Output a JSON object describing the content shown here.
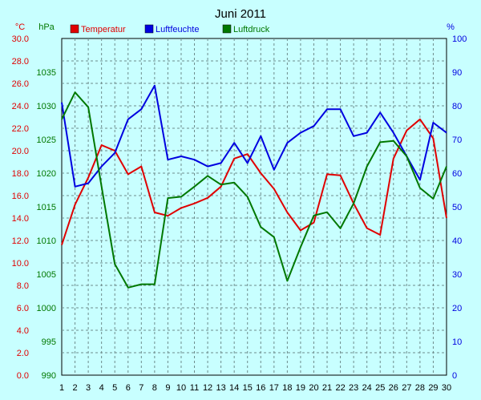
{
  "chart_data": {
    "type": "line",
    "title": "Juni 2011",
    "colors": {
      "background": "#c8ffff",
      "grid": "#6e8c8c",
      "temperature": "#e00000",
      "humidity": "#0000e0",
      "pressure": "#007800"
    },
    "axes": {
      "temperature": {
        "unit": "°C",
        "min": 0,
        "max": 30,
        "step": 2,
        "tick_labels": [
          "0.0",
          "2.0",
          "4.0",
          "6.0",
          "8.0",
          "10.0",
          "12.0",
          "14.0",
          "16.0",
          "18.0",
          "20.0",
          "22.0",
          "24.0",
          "26.0",
          "28.0",
          "30.0"
        ]
      },
      "pressure": {
        "unit": "hPa",
        "min": 990,
        "max": 1040,
        "step": 5,
        "tick_labels": [
          "990",
          "995",
          "1000",
          "1005",
          "1010",
          "1015",
          "1020",
          "1025",
          "1030",
          "1035"
        ]
      },
      "humidity": {
        "unit": "%",
        "min": 0,
        "max": 100,
        "step": 10,
        "tick_labels": [
          "0",
          "10",
          "20",
          "30",
          "40",
          "50",
          "60",
          "70",
          "80",
          "90",
          "100"
        ]
      }
    },
    "x": [
      1,
      2,
      3,
      4,
      5,
      6,
      7,
      8,
      9,
      10,
      11,
      12,
      13,
      14,
      15,
      16,
      17,
      18,
      19,
      20,
      21,
      22,
      23,
      24,
      25,
      26,
      27,
      28,
      29,
      30
    ],
    "grid": true,
    "series": [
      {
        "name": "Temperatur",
        "axis": "temperature",
        "color": "#e00000",
        "values": [
          11.6,
          15.2,
          17.6,
          20.5,
          20.0,
          17.9,
          18.6,
          14.5,
          14.2,
          14.9,
          15.3,
          15.8,
          16.8,
          19.3,
          19.7,
          18.0,
          16.6,
          14.5,
          12.9,
          13.6,
          17.9,
          17.8,
          15.3,
          13.1,
          12.5,
          19.3,
          21.8,
          22.8,
          21.1,
          14.0
        ]
      },
      {
        "name": "Luftfeuchte",
        "axis": "humidity",
        "color": "#0000e0",
        "values": [
          81,
          56,
          57,
          62,
          66,
          76,
          79,
          86,
          64,
          65,
          64,
          62,
          63,
          69,
          63,
          71,
          61,
          69,
          72,
          74,
          79,
          79,
          71,
          72,
          78,
          72,
          65,
          58,
          75,
          72
        ]
      },
      {
        "name": "Luftdruck",
        "axis": "pressure",
        "color": "#007800",
        "values": [
          1028.0,
          1032.0,
          1029.8,
          1018.0,
          1006.5,
          1003.0,
          1003.5,
          1003.5,
          1016.3,
          1016.5,
          1018.0,
          1019.6,
          1018.3,
          1018.6,
          1016.5,
          1012.0,
          1010.5,
          1004.0,
          1009.0,
          1013.7,
          1014.2,
          1011.8,
          1015.5,
          1021.0,
          1024.6,
          1024.8,
          1022.5,
          1017.8,
          1016.2,
          1021.0
        ]
      }
    ]
  }
}
